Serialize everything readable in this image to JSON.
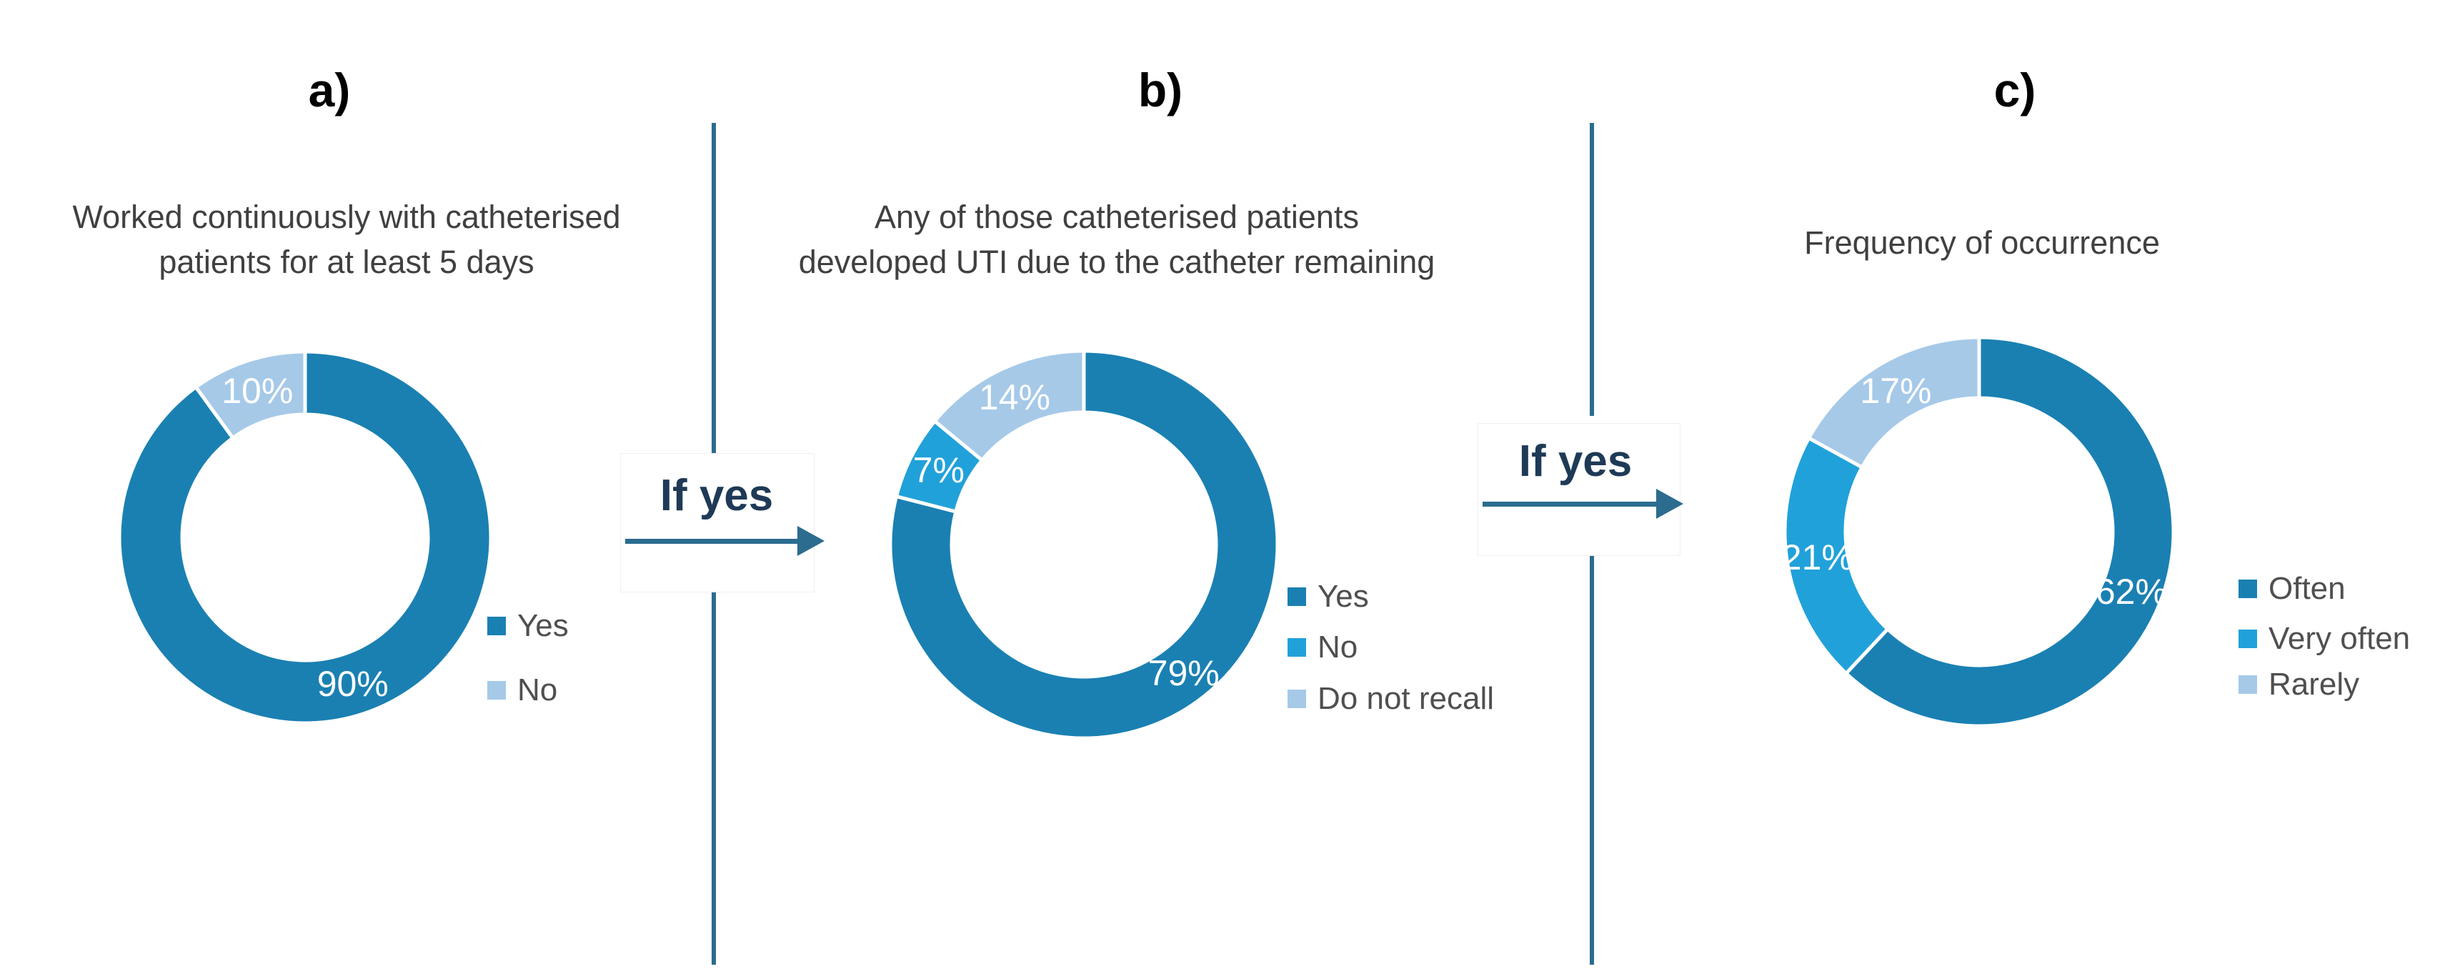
{
  "palette": {
    "dark_blue": "#1a80b2",
    "medium_blue": "#21a1da",
    "light_blue": "#a6c9e8",
    "connector_line": "#2b6c8f",
    "if_yes_text": "#1e3a56",
    "title_text": "#404040",
    "legend_text": "#4f4f4f",
    "percent_label_text": "#ffffff"
  },
  "connectors": [
    {
      "label": "If yes"
    },
    {
      "label": "If yes"
    }
  ],
  "chart_data": [
    {
      "type": "donut",
      "panel": "a)",
      "title": "Worked continuously with catheterised patients for at least 5 days",
      "title_lines": [
        "Worked continuously with catheterised",
        "patients for at least 5 days"
      ],
      "labels": [
        "Yes",
        "No"
      ],
      "values": [
        90,
        10
      ],
      "value_labels": [
        "90%",
        "10%"
      ],
      "colors": [
        "#1a80b2",
        "#a6c9e8"
      ],
      "start_angle_deg": 0,
      "direction": "clockwise",
      "legend_position": "right"
    },
    {
      "type": "donut",
      "panel": "b)",
      "title": "Any of those catheterised patients developed UTI due to the catheter remaining",
      "title_lines": [
        "Any of those catheterised patients",
        "developed UTI due to the catheter remaining"
      ],
      "labels": [
        "Yes",
        "No",
        "Do not recall"
      ],
      "values": [
        79,
        7,
        14
      ],
      "value_labels": [
        "79%",
        "7%",
        "14%"
      ],
      "colors": [
        "#1a80b2",
        "#21a1da",
        "#a6c9e8"
      ],
      "start_angle_deg": 0,
      "direction": "clockwise",
      "legend_position": "right"
    },
    {
      "type": "donut",
      "panel": "c)",
      "title": "Frequency of occurrence",
      "title_lines": [
        "Frequency of occurrence"
      ],
      "labels": [
        "Often",
        "Very often",
        "Rarely"
      ],
      "values": [
        62,
        21,
        17
      ],
      "value_labels": [
        "62%",
        "21%",
        "17%"
      ],
      "colors": [
        "#1a80b2",
        "#21a1da",
        "#a6c9e8"
      ],
      "start_angle_deg": 0,
      "direction": "clockwise",
      "legend_position": "right"
    }
  ]
}
